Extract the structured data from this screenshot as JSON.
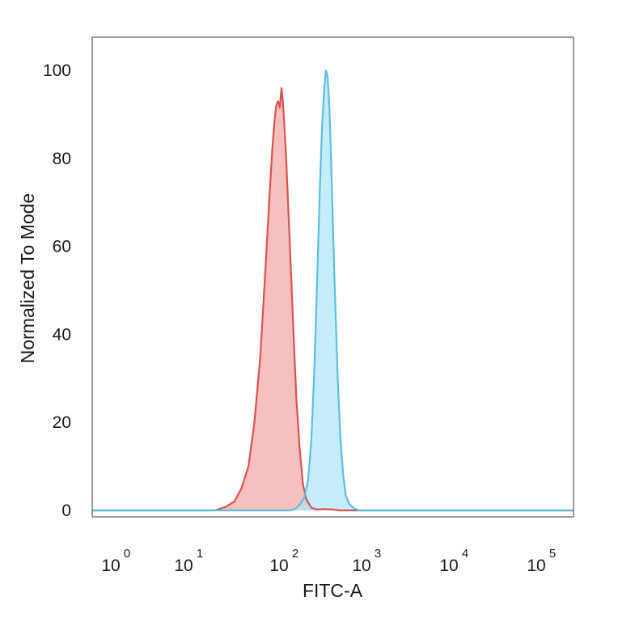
{
  "chart_data": {
    "type": "area",
    "xlabel": "FITC-A",
    "ylabel": "Normalized To Mode",
    "x_scale": "log-biexponential",
    "ylim": [
      0,
      100
    ],
    "y_ticks": [
      {
        "value": 0,
        "label": "0"
      },
      {
        "value": 20,
        "label": "20"
      },
      {
        "value": 40,
        "label": "40"
      },
      {
        "value": 60,
        "label": "60"
      },
      {
        "value": 80,
        "label": "80"
      },
      {
        "value": 100,
        "label": "100"
      }
    ],
    "x_ticks": [
      {
        "value": 1,
        "base": "10",
        "exp": "0"
      },
      {
        "value": 10,
        "base": "10",
        "exp": "1"
      },
      {
        "value": 100,
        "base": "10",
        "exp": "2"
      },
      {
        "value": 1000,
        "base": "10",
        "exp": "3"
      },
      {
        "value": 10000,
        "base": "10",
        "exp": "4"
      },
      {
        "value": 100000,
        "base": "10",
        "exp": "5"
      }
    ],
    "grid": false,
    "legend": "none",
    "series": [
      {
        "color_line": "#d9534f",
        "color_fill": "#f4a6a3",
        "x": [
          20,
          26,
          32,
          38,
          45,
          52,
          60,
          68,
          75,
          80,
          84,
          88,
          92,
          96,
          100,
          104,
          108,
          114,
          120,
          130,
          140,
          152,
          166,
          182,
          200,
          230,
          270,
          330,
          420,
          520
        ],
        "y": [
          0,
          0.8,
          2,
          5,
          10,
          20,
          35,
          55,
          72,
          82,
          88,
          92,
          93,
          91.5,
          96,
          93,
          88,
          80,
          70,
          55,
          40,
          25,
          14,
          6,
          2.5,
          0.6,
          0.2,
          0.3,
          0.2,
          0
        ]
      },
      {
        "color_line": "#5bc0de",
        "color_fill": "#ade5f8",
        "x": [
          130,
          150,
          170,
          190,
          210,
          230,
          250,
          270,
          290,
          310,
          330,
          345,
          360,
          375,
          390,
          410,
          440,
          480,
          520,
          560,
          600,
          660,
          750,
          870
        ],
        "y": [
          0,
          0.5,
          1.5,
          3,
          7,
          16,
          32,
          52,
          72,
          87,
          96,
          100,
          99,
          94,
          86,
          72,
          52,
          30,
          16,
          8,
          3.5,
          1.5,
          0.5,
          0
        ]
      }
    ]
  }
}
